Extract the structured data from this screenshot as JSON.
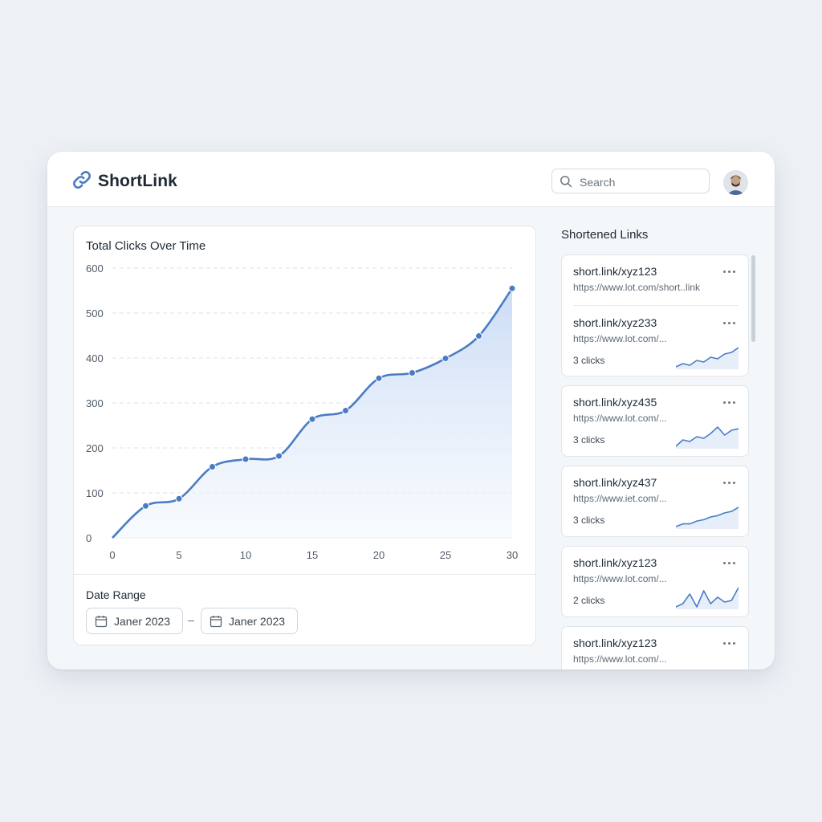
{
  "app": {
    "name": "ShortLink"
  },
  "search": {
    "placeholder": "Search"
  },
  "colors": {
    "accent": "#4a7cc4",
    "area_fill": "#dbe7f8"
  },
  "chart_card": {
    "date_range_label": "Date Range",
    "date_from": "Janer 2023",
    "date_to": "Janer 2023",
    "separator": "–"
  },
  "chart_data": {
    "type": "line",
    "title": "Total Clicks Over Time",
    "xlabel": "",
    "ylabel": "",
    "x": [
      0,
      2.5,
      5,
      7.5,
      10,
      12.5,
      15,
      17.5,
      20,
      22.5,
      25,
      27.5,
      30
    ],
    "values": [
      0,
      71,
      87,
      158,
      175,
      182,
      264,
      283,
      355,
      367,
      399,
      449,
      555
    ],
    "xlim": [
      0,
      30
    ],
    "ylim": [
      0,
      600
    ],
    "xticks": [
      0,
      5,
      10,
      15,
      20,
      25,
      30
    ],
    "yticks": [
      0,
      100,
      200,
      300,
      400,
      500,
      600
    ],
    "grid": true,
    "legend": "none"
  },
  "links": {
    "title": "Shortened Links",
    "items": [
      {
        "short": "short.link/xyz123",
        "url": "https://www.lot.com/short..link",
        "clicks": ""
      },
      {
        "short": "short.link/xyz233",
        "url": "https://www.lot.com/...",
        "clicks": "3 clicks",
        "spark": [
          2,
          3,
          2.5,
          4,
          3.5,
          5,
          4.5,
          6,
          6.5,
          8
        ]
      },
      {
        "short": "short.link/xyz435",
        "url": "https://www.lot.com/...",
        "clicks": "3 clicks",
        "spark": [
          2,
          4,
          3.5,
          5,
          4.5,
          6,
          8,
          5.5,
          7,
          7.5
        ]
      },
      {
        "short": "short.link/xyz437",
        "url": "https://www.iet.com/...",
        "clicks": "3 clicks",
        "spark": [
          2,
          3,
          3,
          4,
          4.5,
          5.5,
          6,
          7,
          7.5,
          9
        ]
      },
      {
        "short": "short.link/xyz123",
        "url": "https://www.lot.com/...",
        "clicks": "2 clicks",
        "spark": [
          3,
          4,
          7,
          3,
          8,
          4,
          6,
          4.5,
          5,
          9
        ]
      },
      {
        "short": "short.link/xyz123",
        "url": "https://www.lot.com/...",
        "clicks": ""
      }
    ]
  }
}
